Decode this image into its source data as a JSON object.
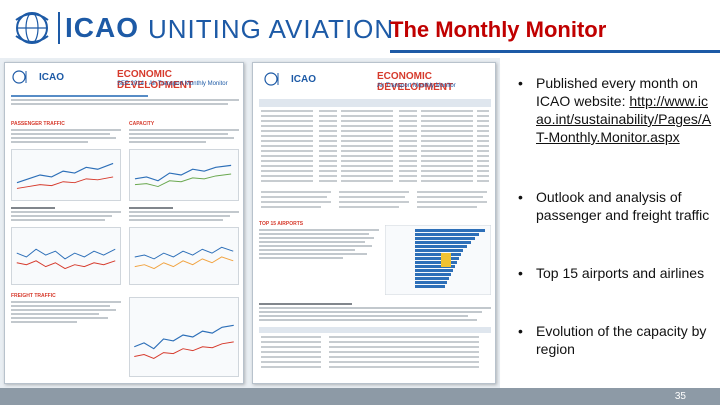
{
  "header": {
    "logo_text": "ICAO",
    "tagline": "UNITING AVIATION",
    "title": "The Monthly Monitor"
  },
  "thumbnails": {
    "left": {
      "org": "ICAO",
      "headline": "ECONOMIC DEVELOPMENT",
      "subline": "SEP 2014 · Air Transport Monthly Monitor",
      "section_passenger": "PASSENGER TRAFFIC",
      "section_capacity": "CAPACITY",
      "section_freight": "FREIGHT TRAFFIC"
    },
    "right": {
      "org": "ICAO",
      "headline": "ECONOMIC DEVELOPMENT",
      "subline": "Air Transport Monthly Monitor",
      "section_top15": "TOP 15 AIRPORTS"
    }
  },
  "bullets": {
    "b1_text": "Published every month on ICAO website: ",
    "b1_link": "http://www.icao.int/sustainability/Pages/AT-Monthly.Monitor.aspx",
    "b2_text": "Outlook and analysis of passenger and freight traffic",
    "b3_text": "Top 15 airports and airlines",
    "b4_text": "Evolution of the capacity by region",
    "bullet_char": "•"
  },
  "footer": {
    "page_number": "35"
  },
  "colors": {
    "brand_blue": "#1d5aa6",
    "title_red": "#c00000",
    "footer_gray": "#8d9aa6"
  }
}
